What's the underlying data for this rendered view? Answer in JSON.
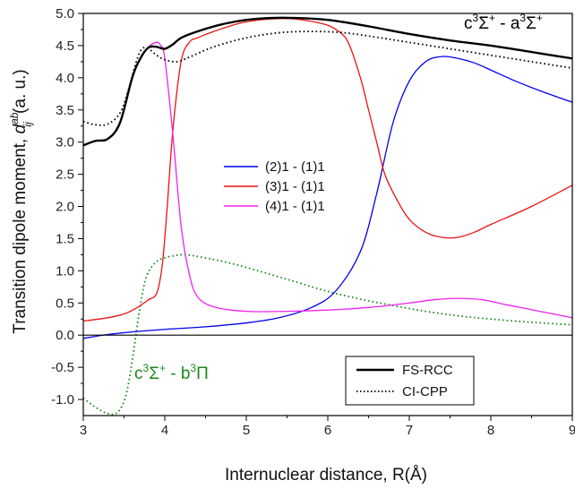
{
  "chart_data": {
    "type": "line",
    "xlabel": "Internuclear distance, R(Å)",
    "ylabel": "Transition dipole moment, ",
    "ylabel_symbol": "d",
    "ylabel_sup": "ab",
    "ylabel_sub": "ij",
    "ylabel_unit": " (a. u.)",
    "xlim": [
      3,
      9
    ],
    "ylim": [
      -1.25,
      5.0
    ],
    "xticks": [
      3,
      4,
      5,
      6,
      7,
      8,
      9
    ],
    "xtick_labels": [
      "3",
      "4",
      "5",
      "6",
      "7",
      "8",
      "9"
    ],
    "yticks": [
      -1.0,
      -0.5,
      0.0,
      0.5,
      1.0,
      1.5,
      2.0,
      2.5,
      3.0,
      3.5,
      4.0,
      4.5,
      5.0
    ],
    "ytick_labels": [
      "-1.0",
      "-0.5",
      "0.0",
      "0.5",
      "1.0",
      "1.5",
      "2.0",
      "2.5",
      "3.0",
      "3.5",
      "4.0",
      "4.5",
      "5.0"
    ],
    "zero_line": true,
    "grid": false,
    "annotations": {
      "top_right": {
        "c": "c",
        "sup1": "3",
        "sigma1": "Σ",
        "plus1": "+",
        "dash": " - a",
        "sup2": "3",
        "sigma2": "Σ",
        "plus2": "+"
      },
      "bottom_left": {
        "c": "c",
        "sup1": "3",
        "sigma1": "Σ",
        "plus1": "+",
        "dash": " - b",
        "sup2": "3",
        "pi": "Π",
        "color": "#1a8a1a"
      }
    },
    "legend_inner": {
      "placement": "center-left",
      "entries": [
        "(2)1 - (1)1",
        "(3)1 - (1)1",
        "(4)1 - (1)1"
      ]
    },
    "legend_outer": {
      "placement": "bottom-right",
      "entries": [
        "FS-RCC",
        "CI-CPP"
      ]
    },
    "series": [
      {
        "name": "(2)1 - (1)1",
        "color": "#0000ee",
        "dash": "solid",
        "width": 1.3,
        "x": [
          3.0,
          3.3,
          3.6,
          4.0,
          4.5,
          5.0,
          5.4,
          5.8,
          6.1,
          6.4,
          6.6,
          6.8,
          7.0,
          7.2,
          7.4,
          7.6,
          7.8,
          8.0,
          8.3,
          8.6,
          9.0
        ],
        "y": [
          -0.05,
          0.01,
          0.05,
          0.09,
          0.13,
          0.19,
          0.27,
          0.43,
          0.69,
          1.3,
          2.2,
          3.3,
          3.95,
          4.25,
          4.33,
          4.3,
          4.23,
          4.12,
          3.95,
          3.8,
          3.62
        ]
      },
      {
        "name": "(3)1 - (1)1",
        "color": "#ee1111",
        "dash": "solid",
        "width": 1.3,
        "x": [
          3.0,
          3.3,
          3.5,
          3.65,
          3.8,
          3.9,
          3.97,
          4.03,
          4.1,
          4.2,
          4.3,
          4.4,
          4.6,
          5.0,
          5.5,
          5.9,
          6.1,
          6.25,
          6.4,
          6.5,
          6.6,
          6.7,
          6.85,
          7.0,
          7.2,
          7.4,
          7.6,
          7.8,
          8.0,
          8.5,
          9.0
        ],
        "y": [
          0.22,
          0.27,
          0.33,
          0.42,
          0.55,
          0.65,
          1.1,
          2.0,
          3.2,
          4.25,
          4.55,
          4.62,
          4.72,
          4.87,
          4.92,
          4.85,
          4.75,
          4.55,
          4.0,
          3.5,
          3.0,
          2.5,
          2.1,
          1.8,
          1.6,
          1.52,
          1.52,
          1.6,
          1.72,
          2.0,
          2.33
        ]
      },
      {
        "name": "(4)1 - (1)1",
        "color": "#ee22ee",
        "dash": "solid",
        "width": 1.3,
        "x": [
          3.0,
          3.15,
          3.3,
          3.45,
          3.6,
          3.7,
          3.8,
          3.9,
          3.95,
          4.0,
          4.1,
          4.2,
          4.3,
          4.4,
          4.6,
          5.0,
          5.5,
          6.0,
          6.5,
          7.0,
          7.3,
          7.6,
          7.9,
          8.2,
          8.6,
          9.0
        ],
        "y": [
          2.95,
          3.02,
          3.05,
          3.3,
          4.0,
          4.3,
          4.48,
          4.55,
          4.5,
          4.3,
          3.1,
          1.7,
          0.95,
          0.6,
          0.44,
          0.37,
          0.37,
          0.39,
          0.43,
          0.5,
          0.55,
          0.57,
          0.55,
          0.47,
          0.37,
          0.27
        ]
      },
      {
        "name": "FS-RCC",
        "color": "#000000",
        "dash": "solid",
        "width": 2.4,
        "x": [
          3.0,
          3.15,
          3.3,
          3.45,
          3.6,
          3.7,
          3.8,
          3.9,
          4.0,
          4.1,
          4.2,
          4.4,
          4.7,
          5.0,
          5.3,
          5.6,
          6.0,
          6.5,
          7.0,
          7.5,
          8.0,
          8.5,
          9.0
        ],
        "y": [
          2.95,
          3.02,
          3.05,
          3.3,
          4.0,
          4.3,
          4.47,
          4.48,
          4.45,
          4.52,
          4.62,
          4.72,
          4.83,
          4.9,
          4.93,
          4.93,
          4.9,
          4.8,
          4.68,
          4.58,
          4.5,
          4.4,
          4.3
        ]
      },
      {
        "name": "CI-CPP",
        "color": "#000000",
        "dash": "dotted",
        "width": 1.8,
        "x": [
          3.0,
          3.15,
          3.3,
          3.45,
          3.55,
          3.65,
          3.72,
          3.8,
          3.9,
          4.0,
          4.15,
          4.3,
          4.6,
          5.0,
          5.4,
          5.8,
          6.2,
          6.6,
          7.0,
          7.5,
          8.0,
          8.5,
          9.0
        ],
        "y": [
          3.32,
          3.27,
          3.28,
          3.45,
          3.8,
          4.25,
          4.45,
          4.45,
          4.35,
          4.28,
          4.25,
          4.32,
          4.48,
          4.62,
          4.7,
          4.72,
          4.7,
          4.63,
          4.55,
          4.45,
          4.35,
          4.25,
          4.15
        ]
      },
      {
        "name": "c3Σ+ - b3Π",
        "color": "#1a8a1a",
        "dash": "dotted",
        "width": 1.8,
        "x": [
          3.0,
          3.15,
          3.3,
          3.42,
          3.52,
          3.6,
          3.68,
          3.76,
          3.85,
          3.95,
          4.1,
          4.25,
          4.5,
          4.8,
          5.2,
          5.6,
          6.0,
          6.4,
          6.8,
          7.2,
          7.6,
          8.0,
          8.5,
          9.0
        ],
        "y": [
          -0.98,
          -1.12,
          -1.22,
          -1.2,
          -0.95,
          -0.4,
          0.3,
          0.85,
          1.08,
          1.18,
          1.23,
          1.25,
          1.2,
          1.12,
          0.98,
          0.83,
          0.68,
          0.56,
          0.46,
          0.37,
          0.3,
          0.25,
          0.2,
          0.16
        ]
      }
    ]
  }
}
